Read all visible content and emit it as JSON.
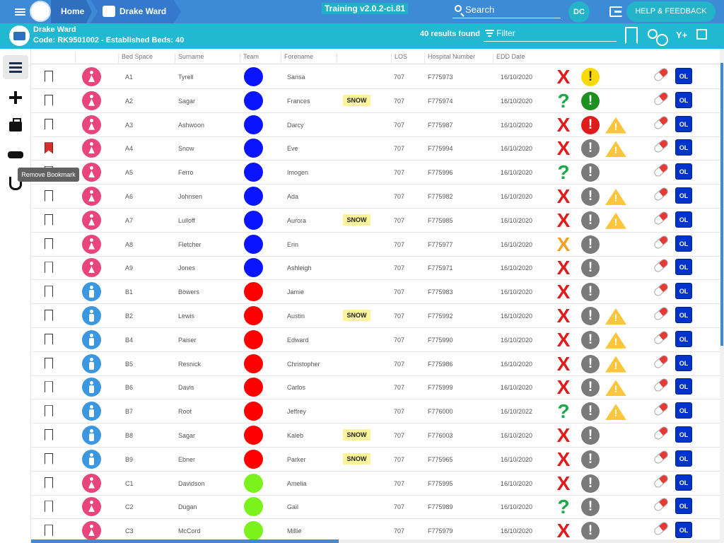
{
  "topbar": {
    "home_label": "Home",
    "ward_label": "Drake Ward",
    "version": "Training v2.0.2-ci.81",
    "search_placeholder": "Search",
    "user_initials": "DC",
    "help_label": "HELP & FEEDBACK"
  },
  "ward": {
    "name": "Drake Ward",
    "code_line": "Code: RK9501002 - Established Beds: 40",
    "results": "40 results found",
    "filter_label": "Filter",
    "filter_add_label": "Y+"
  },
  "tooltip": "Remove Bookmark",
  "columns": [
    "Bed Space",
    "Surname",
    "Team",
    "Forename",
    "LOS",
    "Hospital Number",
    "EDD Date"
  ],
  "colors": {
    "female": "#e8457c",
    "male": "#3a97e0",
    "team_blue": "#0a15ff",
    "team_red": "#ff0000",
    "team_green": "#7cf21c",
    "status_red": "#e01b1b",
    "status_green": "#1da849",
    "status_orange": "#f4a023",
    "alert_yellow": "#f9d90c",
    "alert_red": "#e01b1b",
    "alert_green": "#1f8f1f",
    "alert_grey": "#7a7a7a",
    "accent": "#3d8ad6"
  },
  "rows": [
    {
      "bookmarked": false,
      "gender": "female",
      "bed": "A1",
      "surname": "Tyrell",
      "team": "blue",
      "forename": "Sansa",
      "snow": "",
      "los": "707",
      "hosp": "F775973",
      "edd": "16/10/2020",
      "status": "X",
      "status_color": "red",
      "alert": "yellow",
      "warn": false
    },
    {
      "bookmarked": false,
      "gender": "female",
      "bed": "A2",
      "surname": "Sagar",
      "team": "blue",
      "forename": "Frances",
      "snow": "SNOW",
      "los": "707",
      "hosp": "F775974",
      "edd": "16/10/2020",
      "status": "?",
      "status_color": "green",
      "alert": "green",
      "warn": false
    },
    {
      "bookmarked": false,
      "gender": "female",
      "bed": "A3",
      "surname": "Ashwoon",
      "team": "blue",
      "forename": "Darcy",
      "snow": "",
      "los": "707",
      "hosp": "F775987",
      "edd": "16/10/2020",
      "status": "X",
      "status_color": "red",
      "alert": "red",
      "warn": true
    },
    {
      "bookmarked": true,
      "gender": "female",
      "bed": "A4",
      "surname": "Snow",
      "team": "blue",
      "forename": "Eve",
      "snow": "",
      "los": "707",
      "hosp": "F775994",
      "edd": "16/10/2020",
      "status": "X",
      "status_color": "red",
      "alert": "grey",
      "warn": true
    },
    {
      "bookmarked": false,
      "gender": "female",
      "bed": "A5",
      "surname": "Ferro",
      "team": "blue",
      "forename": "Imogen",
      "snow": "",
      "los": "707",
      "hosp": "F775996",
      "edd": "16/10/2020",
      "status": "?",
      "status_color": "green",
      "alert": "grey",
      "warn": false
    },
    {
      "bookmarked": false,
      "gender": "female",
      "bed": "A6",
      "surname": "Johnsen",
      "team": "blue",
      "forename": "Ada",
      "snow": "",
      "los": "707",
      "hosp": "F775982",
      "edd": "16/10/2020",
      "status": "X",
      "status_color": "red",
      "alert": "grey",
      "warn": true
    },
    {
      "bookmarked": false,
      "gender": "female",
      "bed": "A7",
      "surname": "Lulloff",
      "team": "blue",
      "forename": "Aurora",
      "snow": "SNOW",
      "los": "707",
      "hosp": "F775985",
      "edd": "16/10/2020",
      "status": "X",
      "status_color": "red",
      "alert": "grey",
      "warn": true
    },
    {
      "bookmarked": false,
      "gender": "female",
      "bed": "A8",
      "surname": "Fletcher",
      "team": "blue",
      "forename": "Erin",
      "snow": "",
      "los": "707",
      "hosp": "F775977",
      "edd": "16/10/2020",
      "status": "X",
      "status_color": "orange",
      "alert": "grey",
      "warn": false
    },
    {
      "bookmarked": false,
      "gender": "female",
      "bed": "A9",
      "surname": "Jones",
      "team": "blue",
      "forename": "Ashleigh",
      "snow": "",
      "los": "707",
      "hosp": "F775971",
      "edd": "16/10/2020",
      "status": "X",
      "status_color": "red",
      "alert": "grey",
      "warn": false
    },
    {
      "bookmarked": false,
      "gender": "male",
      "bed": "B1",
      "surname": "Bowers",
      "team": "red",
      "forename": "Jamie",
      "snow": "",
      "los": "707",
      "hosp": "F775983",
      "edd": "16/10/2020",
      "status": "X",
      "status_color": "red",
      "alert": "grey",
      "warn": false
    },
    {
      "bookmarked": false,
      "gender": "male",
      "bed": "B2",
      "surname": "Lewis",
      "team": "red",
      "forename": "Austin",
      "snow": "SNOW",
      "los": "707",
      "hosp": "F775992",
      "edd": "16/10/2020",
      "status": "X",
      "status_color": "red",
      "alert": "grey",
      "warn": true
    },
    {
      "bookmarked": false,
      "gender": "male",
      "bed": "B4",
      "surname": "Paiser",
      "team": "red",
      "forename": "Edward",
      "snow": "",
      "los": "707",
      "hosp": "F775990",
      "edd": "16/10/2020",
      "status": "X",
      "status_color": "red",
      "alert": "grey",
      "warn": true
    },
    {
      "bookmarked": false,
      "gender": "male",
      "bed": "B5",
      "surname": "Resnick",
      "team": "red",
      "forename": "Christopher",
      "snow": "",
      "los": "707",
      "hosp": "F775986",
      "edd": "16/10/2020",
      "status": "X",
      "status_color": "red",
      "alert": "grey",
      "warn": true
    },
    {
      "bookmarked": false,
      "gender": "male",
      "bed": "B6",
      "surname": "Davis",
      "team": "red",
      "forename": "Carlos",
      "snow": "",
      "los": "707",
      "hosp": "F775999",
      "edd": "16/10/2020",
      "status": "X",
      "status_color": "red",
      "alert": "grey",
      "warn": true
    },
    {
      "bookmarked": false,
      "gender": "male",
      "bed": "B7",
      "surname": "Root",
      "team": "red",
      "forename": "Jeffrey",
      "snow": "",
      "los": "707",
      "hosp": "F776000",
      "edd": "16/10/2022",
      "status": "?",
      "status_color": "green",
      "alert": "grey",
      "warn": true
    },
    {
      "bookmarked": false,
      "gender": "male",
      "bed": "B8",
      "surname": "Sagar",
      "team": "red",
      "forename": "Kaleb",
      "snow": "SNOW",
      "los": "707",
      "hosp": "F776003",
      "edd": "16/10/2020",
      "status": "X",
      "status_color": "red",
      "alert": "grey",
      "warn": false
    },
    {
      "bookmarked": false,
      "gender": "male",
      "bed": "B9",
      "surname": "Ebner",
      "team": "red",
      "forename": "Parker",
      "snow": "SNOW",
      "los": "707",
      "hosp": "F775965",
      "edd": "16/10/2020",
      "status": "X",
      "status_color": "red",
      "alert": "grey",
      "warn": false
    },
    {
      "bookmarked": false,
      "gender": "female",
      "bed": "C1",
      "surname": "Davidson",
      "team": "green",
      "forename": "Amelia",
      "snow": "",
      "los": "707",
      "hosp": "F775995",
      "edd": "16/10/2020",
      "status": "X",
      "status_color": "red",
      "alert": "grey",
      "warn": false
    },
    {
      "bookmarked": false,
      "gender": "female",
      "bed": "C2",
      "surname": "Dugan",
      "team": "green",
      "forename": "Gail",
      "snow": "",
      "los": "707",
      "hosp": "F775989",
      "edd": "16/10/2020",
      "status": "?",
      "status_color": "green",
      "alert": "grey",
      "warn": false
    },
    {
      "bookmarked": false,
      "gender": "female",
      "bed": "C3",
      "surname": "McCord",
      "team": "green",
      "forename": "Millie",
      "snow": "",
      "los": "707",
      "hosp": "F775979",
      "edd": "16/10/2020",
      "status": "X",
      "status_color": "red",
      "alert": "grey",
      "warn": false
    }
  ],
  "row_action": {
    "ol_label": "OL",
    "alert_glyph": "!",
    "warn_glyph": "!"
  }
}
